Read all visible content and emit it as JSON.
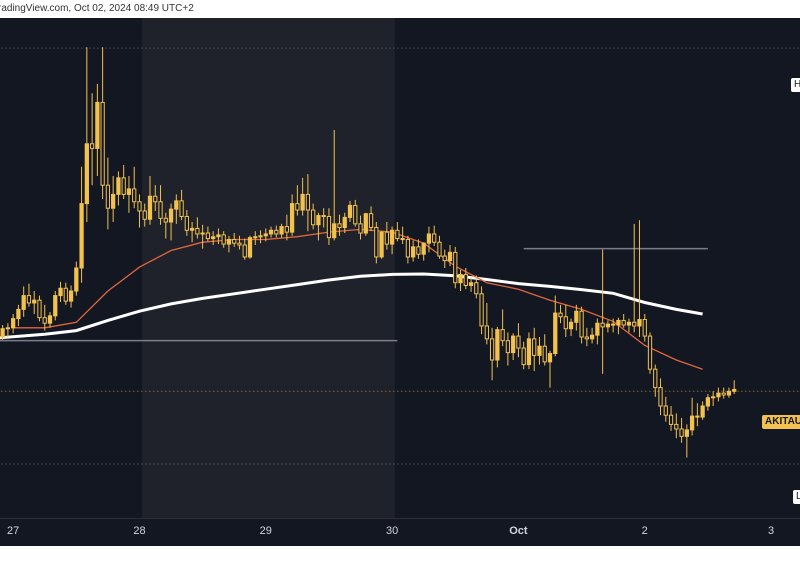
{
  "header": {
    "source_text": "radingView.com, Oct 02, 2024 08:49 UTC+2"
  },
  "tags": {
    "high": "H",
    "price": "AKITAU",
    "low": "L"
  },
  "colors": {
    "background": "#131722",
    "shade": "#1f222b",
    "candle": "#f2c14e",
    "ma_fast": "#e0663c",
    "ma_slow": "#ffffff",
    "level": "#8a8f9c"
  },
  "chart_data": {
    "type": "candlestick",
    "x_ticks": [
      {
        "label": "27",
        "t": 0
      },
      {
        "label": "28",
        "t": 24
      },
      {
        "label": "29",
        "t": 48
      },
      {
        "label": "30",
        "t": 72
      },
      {
        "label": "Oct",
        "t": 96
      },
      {
        "label": "2",
        "t": 120
      },
      {
        "label": "3",
        "t": 144
      }
    ],
    "x_range": [
      -2.5,
      149.5
    ],
    "y_range": [
      0,
      100
    ],
    "shaded_interval": [
      24.5,
      72.5
    ],
    "levels": [
      {
        "name": "h-level",
        "y": 97.8,
        "t_start": -3,
        "t_end": 150,
        "style": "dotted"
      },
      {
        "name": "upper-hline",
        "y": 54.2,
        "t_start": 97,
        "t_end": 132,
        "style": "solid"
      },
      {
        "name": "lower-hline",
        "y": 34.2,
        "t_start": -3,
        "t_end": 73,
        "style": "solid"
      },
      {
        "name": "current-price-line",
        "y": 23.2,
        "t_start": -3,
        "t_end": 150,
        "style": "dotted"
      },
      {
        "name": "l-level",
        "y": 7.4,
        "t_start": -3,
        "t_end": 150,
        "style": "dotted"
      }
    ],
    "ma_slow": [
      [
        -3,
        34.8
      ],
      [
        6,
        35.6
      ],
      [
        12,
        36.4
      ],
      [
        18,
        38.6
      ],
      [
        24,
        40.6
      ],
      [
        30,
        42.2
      ],
      [
        36,
        43.4
      ],
      [
        42,
        44.4
      ],
      [
        48,
        45.4
      ],
      [
        54,
        46.4
      ],
      [
        60,
        47.4
      ],
      [
        66,
        48.2
      ],
      [
        72,
        48.6
      ],
      [
        78,
        48.7
      ],
      [
        84,
        48.3
      ],
      [
        90,
        47.5
      ],
      [
        96,
        46.6
      ],
      [
        102,
        46.0
      ],
      [
        108,
        45.3
      ],
      [
        114,
        44.5
      ],
      [
        120,
        42.5
      ],
      [
        126,
        41.0
      ],
      [
        131,
        40.0
      ]
    ],
    "ma_fast": [
      [
        0,
        37.0
      ],
      [
        6,
        37.0
      ],
      [
        12,
        38.2
      ],
      [
        18,
        45.0
      ],
      [
        24,
        50.2
      ],
      [
        30,
        53.8
      ],
      [
        36,
        55.6
      ],
      [
        42,
        56.2
      ],
      [
        48,
        56.2
      ],
      [
        54,
        56.8
      ],
      [
        60,
        57.8
      ],
      [
        66,
        58.4
      ],
      [
        72,
        57.8
      ],
      [
        78,
        55.4
      ],
      [
        84,
        50.4
      ],
      [
        90,
        46.8
      ],
      [
        96,
        45.4
      ],
      [
        102,
        43.0
      ],
      [
        108,
        41.0
      ],
      [
        114,
        38.4
      ],
      [
        120,
        33.2
      ],
      [
        126,
        30.0
      ],
      [
        131,
        28.0
      ]
    ],
    "candles": [
      [
        -2,
        35,
        37.6,
        34.4,
        36.8
      ],
      [
        -1,
        36.8,
        38,
        35,
        37
      ],
      [
        0,
        37,
        40,
        35.8,
        39
      ],
      [
        1,
        39,
        42,
        37.4,
        41
      ],
      [
        2,
        41,
        46,
        39.4,
        44
      ],
      [
        3,
        44,
        46.6,
        41.6,
        42.4
      ],
      [
        4,
        42.4,
        45,
        40,
        43
      ],
      [
        5,
        43,
        44,
        38.4,
        39.2
      ],
      [
        6,
        39.2,
        42,
        36.4,
        38
      ],
      [
        7,
        38,
        40.4,
        37,
        39.6
      ],
      [
        8,
        39.6,
        45,
        38.6,
        44
      ],
      [
        9,
        44,
        47,
        42.6,
        45.6
      ],
      [
        10,
        45.6,
        46.8,
        42,
        42.8
      ],
      [
        11,
        42.8,
        46.2,
        41.4,
        45
      ],
      [
        12,
        45,
        51.4,
        44,
        50
      ],
      [
        13,
        50,
        72,
        46.8,
        64
      ],
      [
        14,
        64,
        98,
        60,
        77
      ],
      [
        15,
        77,
        88,
        68,
        76
      ],
      [
        16,
        76,
        90,
        70,
        86
      ],
      [
        17,
        86,
        98,
        65,
        68
      ],
      [
        18,
        68,
        74,
        58.4,
        63
      ],
      [
        19,
        63,
        70,
        60,
        66
      ],
      [
        20,
        66,
        71,
        63.6,
        69.6
      ],
      [
        21,
        69.6,
        72.4,
        65,
        66
      ],
      [
        22,
        66,
        70,
        62,
        67.2
      ],
      [
        23,
        67.2,
        72,
        63,
        64.4
      ],
      [
        24,
        64.4,
        66,
        58.8,
        62.4
      ],
      [
        25,
        62.4,
        64,
        59,
        60.6
      ],
      [
        26,
        60.6,
        70,
        59.4,
        65.6
      ],
      [
        27,
        65.6,
        68,
        62.4,
        64.4
      ],
      [
        28,
        64.4,
        68,
        59.4,
        60.8
      ],
      [
        29,
        60.8,
        62,
        56.4,
        60
      ],
      [
        30,
        60,
        64,
        56,
        62.8
      ],
      [
        31,
        62.8,
        66,
        59.6,
        64.6
      ],
      [
        32,
        64.6,
        67,
        60.4,
        61.2
      ],
      [
        33,
        61.2,
        62.6,
        57,
        58.2
      ],
      [
        34,
        58.2,
        60,
        55.6,
        58.6
      ],
      [
        35,
        58.6,
        61,
        56.4,
        57.4
      ],
      [
        36,
        57.4,
        59.4,
        54.2,
        57.6
      ],
      [
        37,
        57.6,
        59,
        55.8,
        56.4
      ],
      [
        38,
        56.4,
        58,
        55,
        56.8
      ],
      [
        39,
        56.8,
        58.6,
        55.2,
        57.2
      ],
      [
        40,
        57.2,
        58,
        54.4,
        55.2
      ],
      [
        41,
        55.2,
        57,
        53.4,
        56.2
      ],
      [
        42,
        56.2,
        57.6,
        54.6,
        55.4
      ],
      [
        43,
        55.4,
        57,
        54,
        55
      ],
      [
        44,
        55,
        56.4,
        51.8,
        52.4
      ],
      [
        45,
        52.4,
        57,
        52,
        56.6
      ],
      [
        46,
        56.6,
        58,
        55,
        56.8
      ],
      [
        47,
        56.8,
        58.2,
        55.4,
        57
      ],
      [
        48,
        57,
        58.6,
        55.8,
        57.4
      ],
      [
        49,
        57.4,
        59,
        56.6,
        58.2
      ],
      [
        50,
        58.2,
        59.2,
        56.6,
        57.4
      ],
      [
        51,
        57.4,
        59.6,
        56.6,
        59
      ],
      [
        52,
        59,
        61.6,
        56,
        57.8
      ],
      [
        53,
        57.8,
        66,
        57,
        64
      ],
      [
        54,
        64,
        68,
        61.4,
        62.6
      ],
      [
        55,
        62.6,
        69.6,
        61.4,
        66
      ],
      [
        56,
        66,
        70.4,
        58,
        62.6
      ],
      [
        57,
        62.6,
        64,
        58.4,
        59.4
      ],
      [
        58,
        59.4,
        62,
        56,
        61.4
      ],
      [
        59,
        61.4,
        63,
        58.8,
        61.2
      ],
      [
        60,
        61.2,
        63,
        55,
        56.6
      ],
      [
        61,
        56.6,
        80,
        56,
        59.6
      ],
      [
        62,
        59.6,
        61.6,
        57,
        58.8
      ],
      [
        63,
        58.8,
        62,
        57.6,
        61
      ],
      [
        64,
        61,
        64.6,
        60,
        63.6
      ],
      [
        65,
        63.6,
        64.8,
        59,
        59.6
      ],
      [
        66,
        59.6,
        61.4,
        56.2,
        57.6
      ],
      [
        67,
        57.6,
        62,
        57,
        61.8
      ],
      [
        68,
        61.8,
        63.4,
        58,
        58.8
      ],
      [
        69,
        58.8,
        60,
        51,
        52.4
      ],
      [
        70,
        52.4,
        58,
        52,
        57.8
      ],
      [
        71,
        57.8,
        60,
        54,
        55.2
      ],
      [
        72,
        55.2,
        59,
        53,
        58.2
      ],
      [
        73,
        58.2,
        60,
        55.8,
        56.4
      ],
      [
        74,
        56.4,
        59,
        55.2,
        56.2
      ],
      [
        75,
        56.2,
        57,
        51,
        52.4
      ],
      [
        76,
        52.4,
        56,
        51.4,
        54.6
      ],
      [
        77,
        54.6,
        56.2,
        52,
        53
      ],
      [
        78,
        53,
        55.6,
        51.6,
        55.4
      ],
      [
        79,
        55.4,
        59,
        53.4,
        57.4
      ],
      [
        80,
        57.4,
        59.2,
        54.8,
        55.6
      ],
      [
        81,
        55.6,
        57,
        52,
        52.6
      ],
      [
        82,
        52.6,
        54,
        50,
        51.6
      ],
      [
        83,
        51.6,
        55,
        50.4,
        53.4
      ],
      [
        84,
        53.4,
        54.6,
        45.6,
        46.8
      ],
      [
        85,
        46.8,
        49.6,
        45,
        48.6
      ],
      [
        86,
        48.6,
        50,
        45.4,
        46.2
      ],
      [
        87,
        46.2,
        48,
        44.8,
        46.8
      ],
      [
        88,
        46.8,
        48.4,
        43.4,
        44.4
      ],
      [
        89,
        44.4,
        46,
        35.6,
        37.4
      ],
      [
        90,
        37.4,
        42.4,
        33.4,
        34.6
      ],
      [
        91,
        34.6,
        37,
        25.6,
        30
      ],
      [
        92,
        30,
        37.2,
        28.4,
        36.6
      ],
      [
        93,
        36.6,
        41,
        33,
        34.2
      ],
      [
        94,
        34.2,
        36,
        28.8,
        31.6
      ],
      [
        95,
        31.6,
        35.8,
        30,
        35.2
      ],
      [
        96,
        35.2,
        38,
        30.6,
        32.6
      ],
      [
        97,
        32.6,
        34,
        28,
        29
      ],
      [
        98,
        29,
        36,
        28,
        34.6
      ],
      [
        99,
        34.6,
        37,
        27.6,
        31
      ],
      [
        100,
        31,
        35,
        29,
        33
      ],
      [
        101,
        33,
        35.6,
        28.8,
        29.6
      ],
      [
        102,
        29.6,
        32,
        24,
        31.4
      ],
      [
        103,
        31.4,
        44,
        30.8,
        40.2
      ],
      [
        104,
        40.2,
        42,
        38,
        39.4
      ],
      [
        105,
        39.4,
        42,
        35,
        36.8
      ],
      [
        106,
        36.8,
        39,
        35.2,
        38.2
      ],
      [
        107,
        38.2,
        42,
        36.4,
        40.6
      ],
      [
        108,
        40.6,
        41.6,
        33.6,
        35
      ],
      [
        109,
        35,
        37,
        33,
        34.6
      ],
      [
        110,
        34.6,
        37,
        33.6,
        35.4
      ],
      [
        111,
        35.4,
        39,
        33.4,
        38
      ],
      [
        112,
        38,
        54,
        27,
        37.2
      ],
      [
        113,
        37.2,
        38.6,
        36,
        37.8
      ],
      [
        114,
        37.8,
        39,
        36,
        37.6
      ],
      [
        115,
        37.6,
        39.2,
        35.6,
        38.6
      ],
      [
        116,
        38.6,
        40,
        37,
        37.6
      ],
      [
        117,
        37.6,
        39,
        36,
        38.2
      ],
      [
        118,
        38.2,
        59.6,
        36,
        37.4
      ],
      [
        119,
        37.4,
        60.4,
        35,
        38.8
      ],
      [
        120,
        38.8,
        40,
        34,
        35.2
      ],
      [
        121,
        35.2,
        36,
        27,
        28
      ],
      [
        122,
        28,
        29,
        22,
        24
      ],
      [
        123,
        24,
        26,
        18,
        20
      ],
      [
        124,
        20,
        22,
        16.6,
        18
      ],
      [
        125,
        18,
        20,
        14.6,
        16
      ],
      [
        126,
        16,
        18.4,
        13,
        15
      ],
      [
        127,
        15,
        17.4,
        12,
        13.4
      ],
      [
        128,
        13.4,
        16,
        8.8,
        14.8
      ],
      [
        129,
        14.8,
        21.8,
        13.6,
        17.8
      ],
      [
        130,
        17.8,
        20.6,
        15.6,
        17.6
      ],
      [
        131,
        17.6,
        21,
        17,
        20
      ],
      [
        132,
        20,
        22.6,
        19,
        21.8
      ],
      [
        133,
        21.8,
        23.2,
        20,
        22
      ],
      [
        134,
        22,
        24,
        21,
        22.8
      ],
      [
        135,
        22.8,
        24,
        21.6,
        22.4
      ],
      [
        136,
        22.4,
        24,
        21.8,
        23.2
      ],
      [
        137,
        23.2,
        25.6,
        22.6,
        23.6
      ]
    ]
  }
}
